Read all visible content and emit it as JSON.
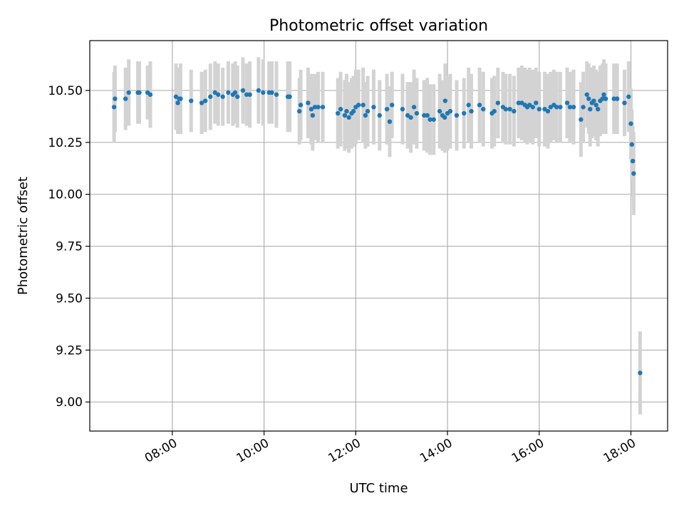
{
  "chart_data": {
    "type": "scatter",
    "title": "Photometric offset variation",
    "xlabel": "UTC time",
    "ylabel": "Photometric offset",
    "x_unit": "hours UTC",
    "xlim": [
      6.2,
      18.8
    ],
    "ylim": [
      8.86,
      10.74
    ],
    "xticks": [
      {
        "value": 8,
        "label": "08:00"
      },
      {
        "value": 10,
        "label": "10:00"
      },
      {
        "value": 12,
        "label": "12:00"
      },
      {
        "value": 14,
        "label": "14:00"
      },
      {
        "value": 16,
        "label": "16:00"
      },
      {
        "value": 18,
        "label": "18:00"
      }
    ],
    "yticks": [
      {
        "value": 9.0,
        "label": "9.00"
      },
      {
        "value": 9.25,
        "label": "9.25"
      },
      {
        "value": 9.5,
        "label": "9.50"
      },
      {
        "value": 9.75,
        "label": "9.75"
      },
      {
        "value": 10.0,
        "label": "10.00"
      },
      {
        "value": 10.25,
        "label": "10.25"
      },
      {
        "value": 10.5,
        "label": "10.50"
      }
    ],
    "grid": true,
    "colors": {
      "points": "#1f77b4",
      "errorbars": "#d3d3d3"
    },
    "series": [
      {
        "x": [
          6.73,
          6.75,
          6.98,
          7.05,
          7.25,
          7.28,
          7.46,
          7.52,
          8.08,
          8.12,
          8.18,
          8.15,
          8.41,
          8.64,
          8.72,
          8.83,
          8.93,
          9.0,
          9.1,
          9.22,
          9.32,
          9.37,
          9.42,
          9.54,
          9.62,
          9.69,
          9.88,
          9.98,
          10.11,
          10.17,
          10.27,
          10.52,
          10.56,
          10.77,
          10.8,
          10.96,
          11.03,
          11.06,
          11.11,
          11.18,
          11.28,
          11.61,
          11.67,
          11.76,
          11.8,
          11.85,
          11.91,
          11.95,
          12.0,
          12.06,
          12.16,
          12.21,
          12.26,
          12.39,
          12.52,
          12.68,
          12.74,
          12.79,
          13.02,
          13.13,
          13.2,
          13.27,
          13.33,
          13.49,
          13.56,
          13.62,
          13.7,
          13.83,
          13.89,
          13.94,
          13.95,
          14.0,
          14.06,
          14.2,
          14.36,
          14.46,
          14.52,
          14.7,
          14.78,
          14.97,
          15.02,
          15.1,
          15.21,
          15.27,
          15.36,
          15.45,
          15.55,
          15.62,
          15.69,
          15.74,
          15.79,
          15.86,
          15.93,
          16.0,
          16.12,
          16.19,
          16.25,
          16.32,
          16.38,
          16.46,
          16.61,
          16.67,
          16.75,
          16.91,
          16.96,
          17.04,
          17.08,
          17.11,
          17.15,
          17.19,
          17.24,
          17.28,
          17.33,
          17.38,
          17.41,
          17.45,
          17.63,
          17.7,
          17.86,
          17.95,
          18.0,
          18.02,
          18.04,
          18.06,
          18.2
        ],
        "y": [
          10.42,
          10.46,
          10.46,
          10.49,
          10.49,
          10.49,
          10.49,
          10.48,
          10.47,
          10.44,
          10.46,
          10.46,
          10.45,
          10.44,
          10.45,
          10.47,
          10.49,
          10.48,
          10.47,
          10.49,
          10.48,
          10.49,
          10.47,
          10.5,
          10.48,
          10.48,
          10.5,
          10.49,
          10.49,
          10.49,
          10.48,
          10.47,
          10.47,
          10.4,
          10.43,
          10.44,
          10.41,
          10.38,
          10.42,
          10.42,
          10.42,
          10.39,
          10.41,
          10.38,
          10.4,
          10.37,
          10.39,
          10.4,
          10.42,
          10.43,
          10.43,
          10.38,
          10.4,
          10.42,
          10.38,
          10.41,
          10.35,
          10.43,
          10.41,
          10.38,
          10.37,
          10.42,
          10.39,
          10.38,
          10.38,
          10.36,
          10.36,
          10.4,
          10.38,
          10.37,
          10.45,
          10.39,
          10.4,
          10.38,
          10.39,
          10.43,
          10.4,
          10.43,
          10.41,
          10.39,
          10.4,
          10.44,
          10.42,
          10.41,
          10.41,
          10.4,
          10.44,
          10.44,
          10.43,
          10.42,
          10.43,
          10.42,
          10.44,
          10.41,
          10.41,
          10.4,
          10.42,
          10.43,
          10.42,
          10.42,
          10.44,
          10.42,
          10.42,
          10.36,
          10.42,
          10.48,
          10.46,
          10.41,
          10.44,
          10.45,
          10.43,
          10.41,
          10.45,
          10.46,
          10.48,
          10.46,
          10.46,
          10.46,
          10.44,
          10.47,
          10.34,
          10.24,
          10.16,
          10.1,
          9.14
        ],
        "err": [
          0.17,
          0.16,
          0.15,
          0.16,
          0.15,
          0.15,
          0.13,
          0.16,
          0.16,
          0.15,
          0.17,
          0.15,
          0.15,
          0.15,
          0.15,
          0.16,
          0.15,
          0.15,
          0.14,
          0.15,
          0.15,
          0.15,
          0.15,
          0.16,
          0.15,
          0.16,
          0.16,
          0.16,
          0.15,
          0.15,
          0.16,
          0.17,
          0.17,
          0.16,
          0.17,
          0.17,
          0.17,
          0.17,
          0.16,
          0.17,
          0.17,
          0.17,
          0.18,
          0.17,
          0.18,
          0.17,
          0.17,
          0.17,
          0.18,
          0.17,
          0.18,
          0.16,
          0.17,
          0.18,
          0.17,
          0.17,
          0.17,
          0.16,
          0.17,
          0.16,
          0.17,
          0.18,
          0.17,
          0.17,
          0.18,
          0.17,
          0.17,
          0.18,
          0.17,
          0.17,
          0.18,
          0.18,
          0.18,
          0.17,
          0.17,
          0.18,
          0.18,
          0.18,
          0.18,
          0.17,
          0.17,
          0.17,
          0.17,
          0.17,
          0.17,
          0.17,
          0.17,
          0.18,
          0.18,
          0.18,
          0.18,
          0.18,
          0.17,
          0.18,
          0.18,
          0.18,
          0.17,
          0.17,
          0.17,
          0.17,
          0.17,
          0.17,
          0.18,
          0.18,
          0.17,
          0.16,
          0.17,
          0.18,
          0.17,
          0.17,
          0.17,
          0.18,
          0.17,
          0.17,
          0.17,
          0.17,
          0.17,
          0.17,
          0.16,
          0.17,
          0.17,
          0.17,
          0.17,
          0.2,
          0.2
        ]
      }
    ]
  }
}
